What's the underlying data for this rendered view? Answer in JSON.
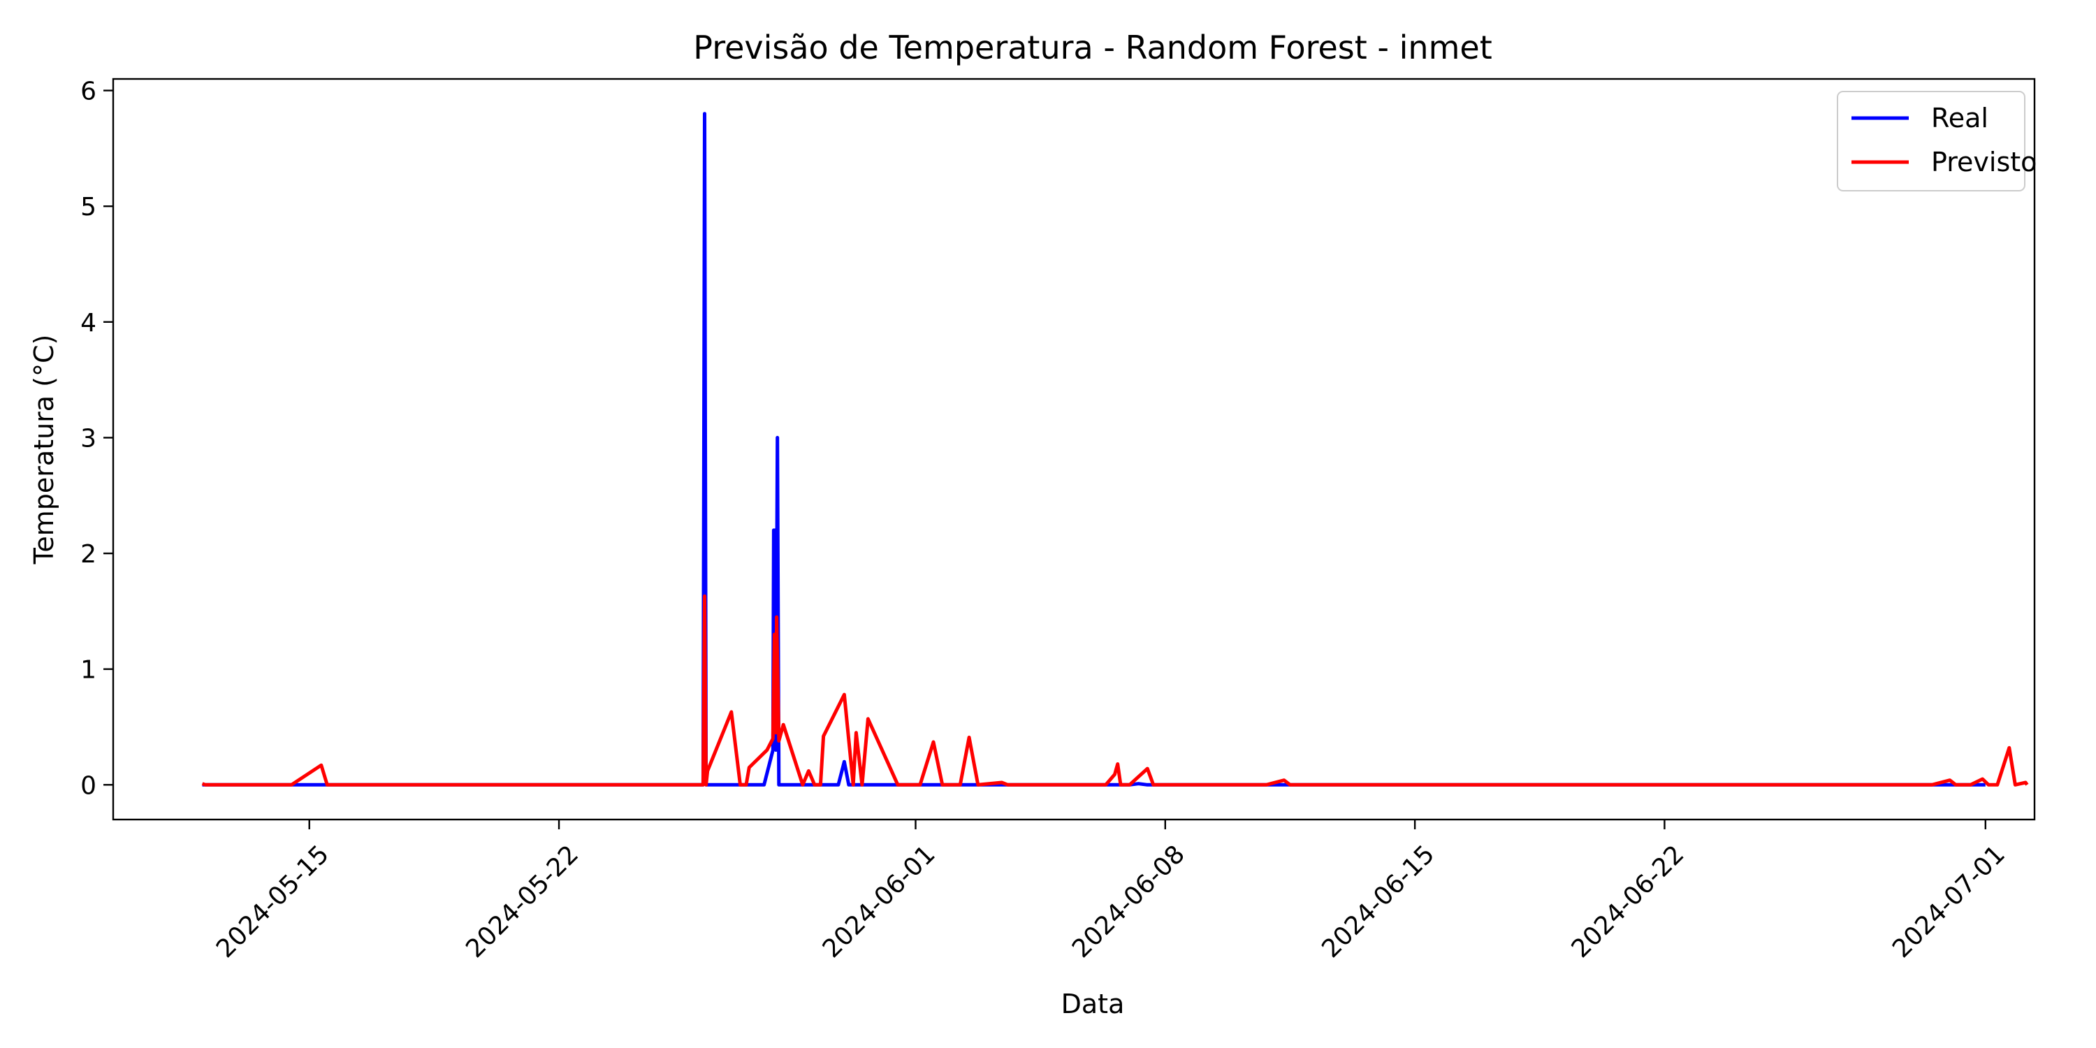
{
  "chart_data": {
    "type": "line",
    "title": "Previsão de Temperatura - Random Forest - inmet",
    "xlabel": "Data",
    "ylabel": "Temperatura (°C)",
    "xlim": [
      "2024-05-09T12:00",
      "2024-07-02T09:00"
    ],
    "ylim": [
      -0.3,
      6.1
    ],
    "x_ticks": [
      "2024-05-15",
      "2024-05-22",
      "2024-06-01",
      "2024-06-08",
      "2024-06-15",
      "2024-06-22",
      "2024-07-01"
    ],
    "y_ticks": [
      0,
      1,
      2,
      3,
      4,
      5,
      6
    ],
    "grid": false,
    "legend": {
      "position": "top-right",
      "entries": [
        "Real",
        "Previsto"
      ]
    },
    "series": [
      {
        "name": "Real",
        "color": "#0000ff",
        "points": [
          [
            "2024-05-12T00:00",
            0
          ],
          [
            "2024-05-26T01:00",
            0
          ],
          [
            "2024-05-26T02:00",
            5.8
          ],
          [
            "2024-05-26T03:00",
            0
          ],
          [
            "2024-05-27T18:00",
            0
          ],
          [
            "2024-05-28T00:00",
            0.3
          ],
          [
            "2024-05-28T00:30",
            2.2
          ],
          [
            "2024-05-28T01:00",
            0.4
          ],
          [
            "2024-05-28T01:30",
            2.2
          ],
          [
            "2024-05-28T02:00",
            0.3
          ],
          [
            "2024-05-28T03:00",
            3.0
          ],
          [
            "2024-05-28T04:00",
            0
          ],
          [
            "2024-05-29T20:00",
            0
          ],
          [
            "2024-05-30T00:00",
            0.2
          ],
          [
            "2024-05-30T03:00",
            0
          ],
          [
            "2024-06-07T00:00",
            0
          ],
          [
            "2024-06-07T06:00",
            0.01
          ],
          [
            "2024-06-07T12:00",
            0
          ],
          [
            "2024-07-01T00:00",
            0
          ]
        ]
      },
      {
        "name": "Previsto",
        "color": "#ff0000",
        "points": [
          [
            "2024-05-12T00:00",
            0.01
          ],
          [
            "2024-05-12T02:00",
            0
          ],
          [
            "2024-05-14T12:00",
            0
          ],
          [
            "2024-05-15T08:00",
            0.17
          ],
          [
            "2024-05-15T12:00",
            0
          ],
          [
            "2024-05-26T01:00",
            0
          ],
          [
            "2024-05-26T02:00",
            1.63
          ],
          [
            "2024-05-26T03:00",
            0
          ],
          [
            "2024-05-26T04:00",
            0.12
          ],
          [
            "2024-05-26T20:00",
            0.63
          ],
          [
            "2024-05-27T02:00",
            0
          ],
          [
            "2024-05-27T06:00",
            0
          ],
          [
            "2024-05-27T08:00",
            0.15
          ],
          [
            "2024-05-27T20:00",
            0.3
          ],
          [
            "2024-05-28T00:00",
            0.4
          ],
          [
            "2024-05-28T01:00",
            1.3
          ],
          [
            "2024-05-28T02:00",
            0.45
          ],
          [
            "2024-05-28T02:30",
            1.45
          ],
          [
            "2024-05-28T04:00",
            0.38
          ],
          [
            "2024-05-28T07:00",
            0.52
          ],
          [
            "2024-05-28T20:00",
            0
          ],
          [
            "2024-05-29T00:00",
            0.12
          ],
          [
            "2024-05-29T04:00",
            0
          ],
          [
            "2024-05-29T08:00",
            0
          ],
          [
            "2024-05-29T10:00",
            0.42
          ],
          [
            "2024-05-30T00:00",
            0.78
          ],
          [
            "2024-05-30T06:00",
            0
          ],
          [
            "2024-05-30T08:00",
            0.45
          ],
          [
            "2024-05-30T12:00",
            0
          ],
          [
            "2024-05-30T16:00",
            0.57
          ],
          [
            "2024-05-31T05:00",
            0.2
          ],
          [
            "2024-05-31T12:00",
            0
          ],
          [
            "2024-06-01T03:00",
            0
          ],
          [
            "2024-06-01T12:00",
            0.37
          ],
          [
            "2024-06-01T18:00",
            0
          ],
          [
            "2024-06-02T06:00",
            0
          ],
          [
            "2024-06-02T12:00",
            0.41
          ],
          [
            "2024-06-02T18:00",
            0
          ],
          [
            "2024-06-03T10:00",
            0.02
          ],
          [
            "2024-06-03T14:00",
            0
          ],
          [
            "2024-06-06T08:00",
            0
          ],
          [
            "2024-06-06T14:00",
            0.09
          ],
          [
            "2024-06-06T16:00",
            0.18
          ],
          [
            "2024-06-06T18:00",
            0
          ],
          [
            "2024-06-07T00:00",
            0
          ],
          [
            "2024-06-07T12:00",
            0.14
          ],
          [
            "2024-06-07T16:00",
            0
          ],
          [
            "2024-06-10T20:00",
            0
          ],
          [
            "2024-06-11T08:00",
            0.04
          ],
          [
            "2024-06-11T12:00",
            0
          ],
          [
            "2024-06-29T12:00",
            0
          ],
          [
            "2024-06-30T00:00",
            0.04
          ],
          [
            "2024-06-30T04:00",
            0
          ],
          [
            "2024-06-30T14:00",
            0
          ],
          [
            "2024-06-30T22:00",
            0.05
          ],
          [
            "2024-07-01T02:00",
            0
          ],
          [
            "2024-07-01T08:00",
            0
          ],
          [
            "2024-07-01T16:00",
            0.32
          ],
          [
            "2024-07-01T20:00",
            0
          ],
          [
            "2024-07-02T03:00",
            0.02
          ],
          [
            "2024-07-02T04:00",
            0
          ]
        ]
      }
    ]
  }
}
